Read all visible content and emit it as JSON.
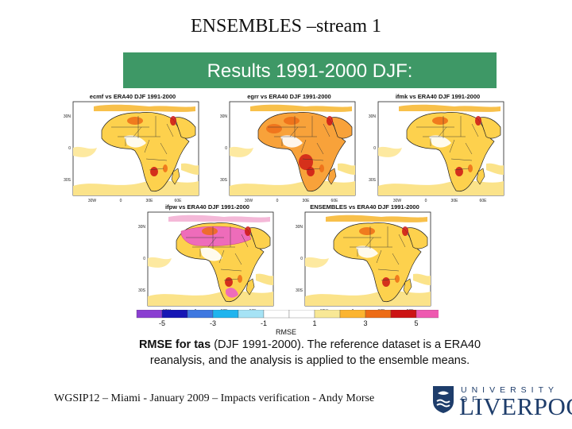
{
  "slide": {
    "title": "ENSEMBLES –stream 1",
    "banner": "Results 1991-2000 DJF:"
  },
  "panels": [
    {
      "title": "ecmf vs ERA40 DJF 1991-2000",
      "variant": "mild"
    },
    {
      "title": "egrr vs ERA40 DJF 1991-2000",
      "variant": "hot"
    },
    {
      "title": "ifmk vs ERA40 DJF 1991-2000",
      "variant": "mild"
    },
    {
      "title": "ifpw vs ERA40 DJF 1991-2000",
      "variant": "pink"
    },
    {
      "title": "ENSEMBLES vs ERA40 DJF 1991-2000",
      "variant": "mild"
    }
  ],
  "axes": {
    "lat_labels": [
      "30N",
      "0",
      "30S"
    ],
    "lon_labels": [
      "30W",
      "0",
      "30E",
      "60E"
    ]
  },
  "colorbar": {
    "label": "RMSE",
    "ticks": [
      "-5",
      "-3",
      "-1",
      "1",
      "3",
      "5"
    ],
    "colors": [
      "#8a3fd1",
      "#1616b4",
      "#3f78e0",
      "#1fb4ee",
      "#a6e3f5",
      "#ffffff",
      "#ffffff",
      "#f8e896",
      "#fbb430",
      "#ed6c16",
      "#cc1414",
      "#ee5ab0"
    ]
  },
  "caption": {
    "bold": "RMSE for tas",
    "line1_rest": " (DJF 1991-2000). The reference dataset is a ERA40",
    "line2": "reanalysis, and the analysis is applied to the ensemble means."
  },
  "footer": "WGSIP12 – Miami - January 2009 – Impacts verification - Andy Morse",
  "logo": {
    "top": "UNIVERSITY OF",
    "main": "LIVERPOOL"
  }
}
